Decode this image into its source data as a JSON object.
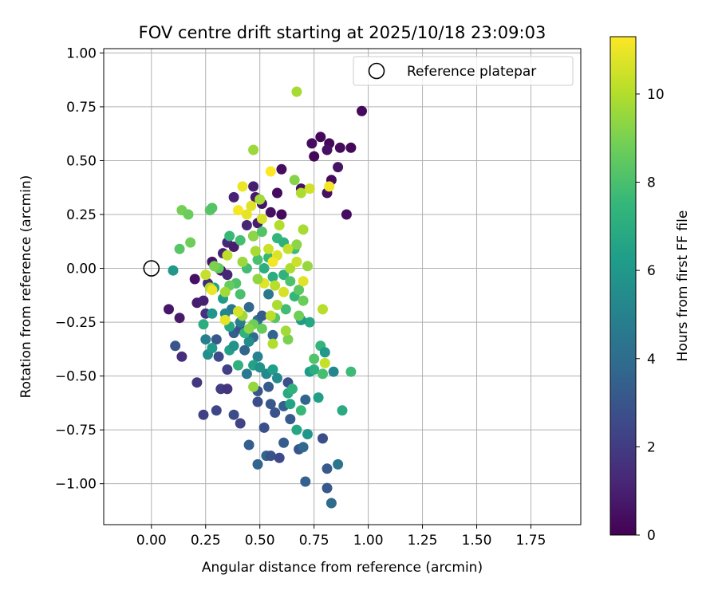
{
  "chart_data": {
    "type": "scatter",
    "title": "FOV centre drift starting at 2025/10/18 23:09:03",
    "xlabel": "Angular distance from reference (arcmin)",
    "ylabel": "Rotation from reference (arcmin)",
    "xlim": [
      -0.22,
      1.98
    ],
    "ylim": [
      -1.19,
      1.02
    ],
    "x_ticks": [
      0.0,
      0.25,
      0.5,
      0.75,
      1.0,
      1.25,
      1.5,
      1.75
    ],
    "x_tick_labels": [
      "0.00",
      "0.25",
      "0.50",
      "0.75",
      "1.00",
      "1.25",
      "1.50",
      "1.75"
    ],
    "y_ticks": [
      1.0,
      0.75,
      0.5,
      0.25,
      0.0,
      -0.25,
      -0.5,
      -0.75,
      -1.0
    ],
    "y_tick_labels": [
      "1.00",
      "0.75",
      "0.50",
      "0.25",
      "0.00",
      "−0.25",
      "−0.50",
      "−0.75",
      "−1.00"
    ],
    "grid": true,
    "legend": {
      "placement": "top-right",
      "entries": [
        "Reference platepar"
      ]
    },
    "reference_point": {
      "x": 0.0,
      "y": 0.0,
      "label": "Reference platepar"
    },
    "colorbar": {
      "label": "Hours from first FF file",
      "range": [
        0,
        11.3
      ],
      "ticks": [
        0,
        2,
        4,
        6,
        8,
        10
      ],
      "tick_labels": [
        "0",
        "2",
        "4",
        "6",
        "8",
        "10"
      ],
      "colormap": "viridis",
      "colormap_stops": [
        "#440154",
        "#482878",
        "#3e4989",
        "#31688e",
        "#26828e",
        "#1f9e89",
        "#35b779",
        "#6ece58",
        "#b5de2b",
        "#fde725"
      ]
    },
    "points": [
      [
        0.97,
        0.73,
        0.3
      ],
      [
        0.78,
        0.61,
        0.2
      ],
      [
        0.74,
        0.58,
        0.4
      ],
      [
        0.82,
        0.58,
        0.2
      ],
      [
        0.87,
        0.56,
        0.3
      ],
      [
        0.92,
        0.56,
        0.2
      ],
      [
        0.81,
        0.55,
        0.5
      ],
      [
        0.75,
        0.52,
        0.2
      ],
      [
        0.86,
        0.47,
        0.6
      ],
      [
        0.83,
        0.41,
        0.3
      ],
      [
        0.6,
        0.46,
        0.4
      ],
      [
        0.69,
        0.37,
        0.5
      ],
      [
        0.81,
        0.35,
        0.5
      ],
      [
        0.58,
        0.35,
        0.3
      ],
      [
        0.47,
        0.38,
        1.0
      ],
      [
        0.48,
        0.33,
        0.8
      ],
      [
        0.38,
        0.33,
        1.1
      ],
      [
        0.51,
        0.3,
        0.6
      ],
      [
        0.9,
        0.25,
        0.4
      ],
      [
        0.55,
        0.26,
        0.5
      ],
      [
        0.6,
        0.25,
        0.3
      ],
      [
        0.49,
        0.21,
        0.9
      ],
      [
        0.44,
        0.2,
        1.2
      ],
      [
        0.47,
        0.15,
        0.8
      ],
      [
        0.35,
        0.12,
        1.3
      ],
      [
        0.38,
        0.1,
        0.9
      ],
      [
        0.33,
        0.07,
        1.1
      ],
      [
        0.28,
        0.03,
        0.7
      ],
      [
        0.32,
        -0.01,
        0.6
      ],
      [
        0.35,
        -0.03,
        1.2
      ],
      [
        0.2,
        -0.05,
        0.5
      ],
      [
        0.26,
        -0.07,
        1.4
      ],
      [
        0.21,
        -0.16,
        0.9
      ],
      [
        0.24,
        -0.15,
        1.0
      ],
      [
        0.08,
        -0.19,
        0.7
      ],
      [
        0.25,
        -0.21,
        1.6
      ],
      [
        0.13,
        -0.23,
        0.8
      ],
      [
        0.14,
        -0.41,
        1.5
      ],
      [
        0.11,
        -0.36,
        3.0
      ],
      [
        0.21,
        -0.53,
        1.8
      ],
      [
        0.24,
        -0.68,
        2.2
      ],
      [
        0.3,
        -0.66,
        2.4
      ],
      [
        0.32,
        -0.56,
        2.0
      ],
      [
        0.35,
        -0.56,
        1.7
      ],
      [
        0.38,
        -0.68,
        2.6
      ],
      [
        0.41,
        -0.72,
        2.3
      ],
      [
        0.45,
        -0.82,
        3.4
      ],
      [
        0.49,
        -0.91,
        3.7
      ],
      [
        0.53,
        -0.87,
        3.6
      ],
      [
        0.55,
        -0.87,
        2.9
      ],
      [
        0.59,
        -0.88,
        2.5
      ],
      [
        0.61,
        -0.81,
        3.3
      ],
      [
        0.68,
        -0.84,
        3.0
      ],
      [
        0.7,
        -0.83,
        3.8
      ],
      [
        0.71,
        -0.99,
        3.5
      ],
      [
        0.79,
        -0.79,
        2.7
      ],
      [
        0.81,
        -0.93,
        3.2
      ],
      [
        0.81,
        -1.02,
        3.1
      ],
      [
        0.83,
        -1.09,
        3.9
      ],
      [
        0.86,
        -0.91,
        4.4
      ],
      [
        0.52,
        -0.74,
        2.8
      ],
      [
        0.55,
        -0.63,
        3.1
      ],
      [
        0.57,
        -0.67,
        2.9
      ],
      [
        0.61,
        -0.64,
        3.4
      ],
      [
        0.64,
        -0.7,
        3.2
      ],
      [
        0.71,
        -0.61,
        3.6
      ],
      [
        0.63,
        -0.53,
        2.8
      ],
      [
        0.49,
        -0.57,
        3.0
      ],
      [
        0.54,
        -0.55,
        3.3
      ],
      [
        0.49,
        -0.62,
        2.7
      ],
      [
        0.31,
        -0.41,
        2.6
      ],
      [
        0.35,
        -0.47,
        2.2
      ],
      [
        0.3,
        -0.33,
        3.1
      ],
      [
        0.38,
        -0.3,
        3.4
      ],
      [
        0.41,
        -0.28,
        2.9
      ],
      [
        0.43,
        -0.38,
        3.6
      ],
      [
        0.47,
        -0.32,
        4.0
      ],
      [
        0.49,
        -0.24,
        4.2
      ],
      [
        0.45,
        -0.18,
        3.8
      ],
      [
        0.54,
        -0.12,
        4.5
      ],
      [
        0.51,
        -0.22,
        3.3
      ],
      [
        0.56,
        -0.31,
        3.7
      ],
      [
        0.44,
        -0.49,
        4.6
      ],
      [
        0.49,
        -0.41,
        5.0
      ],
      [
        0.53,
        -0.49,
        5.3
      ],
      [
        0.45,
        -0.34,
        5.5
      ],
      [
        0.41,
        -0.25,
        4.8
      ],
      [
        0.37,
        -0.19,
        4.4
      ],
      [
        0.28,
        -0.21,
        5.9
      ],
      [
        0.25,
        -0.33,
        4.9
      ],
      [
        0.34,
        -0.21,
        5.2
      ],
      [
        0.33,
        -0.14,
        6.2
      ],
      [
        0.29,
        -0.09,
        6.6
      ],
      [
        0.26,
        -0.4,
        5.6
      ],
      [
        0.28,
        -0.37,
        6.1
      ],
      [
        0.36,
        -0.38,
        6.4
      ],
      [
        0.38,
        -0.36,
        5.8
      ],
      [
        0.36,
        -0.27,
        6.8
      ],
      [
        0.24,
        -0.26,
        7.0
      ],
      [
        0.1,
        -0.01,
        6.0
      ],
      [
        0.4,
        -0.45,
        7.2
      ],
      [
        0.47,
        -0.45,
        6.5
      ],
      [
        0.5,
        -0.46,
        5.7
      ],
      [
        0.56,
        -0.47,
        6.3
      ],
      [
        0.58,
        -0.51,
        5.4
      ],
      [
        0.63,
        -0.58,
        6.9
      ],
      [
        0.65,
        -0.56,
        7.3
      ],
      [
        0.64,
        -0.63,
        6.6
      ],
      [
        0.69,
        -0.66,
        7.6
      ],
      [
        0.67,
        -0.75,
        6.7
      ],
      [
        0.72,
        -0.77,
        5.9
      ],
      [
        0.73,
        -0.48,
        6.2
      ],
      [
        0.75,
        -0.47,
        7.1
      ],
      [
        0.77,
        -0.6,
        6.4
      ],
      [
        0.78,
        -0.36,
        7.4
      ],
      [
        0.8,
        -0.39,
        6.0
      ],
      [
        0.84,
        -0.48,
        5.2
      ],
      [
        0.88,
        -0.66,
        6.9
      ],
      [
        0.92,
        -0.48,
        7.7
      ],
      [
        0.79,
        -0.49,
        7.9
      ],
      [
        0.75,
        -0.42,
        8.2
      ],
      [
        0.73,
        -0.25,
        6.8
      ],
      [
        0.69,
        -0.24,
        6.1
      ],
      [
        0.66,
        -0.13,
        7.5
      ],
      [
        0.62,
        -0.19,
        7.8
      ],
      [
        0.57,
        -0.23,
        8.3
      ],
      [
        0.51,
        -0.28,
        8.6
      ],
      [
        0.47,
        -0.26,
        8.8
      ],
      [
        0.43,
        -0.3,
        7.3
      ],
      [
        0.41,
        -0.12,
        8.0
      ],
      [
        0.39,
        -0.07,
        8.1
      ],
      [
        0.36,
        -0.08,
        8.6
      ],
      [
        0.31,
        0.0,
        8.5
      ],
      [
        0.29,
        0.01,
        9.0
      ],
      [
        0.27,
        0.27,
        8.4
      ],
      [
        0.28,
        0.28,
        8.2
      ],
      [
        0.14,
        0.27,
        8.9
      ],
      [
        0.17,
        0.25,
        8.7
      ],
      [
        0.13,
        0.09,
        8.3
      ],
      [
        0.18,
        0.12,
        8.8
      ],
      [
        0.36,
        0.15,
        7.6
      ],
      [
        0.41,
        0.13,
        7.9
      ],
      [
        0.47,
        0.15,
        9.3
      ],
      [
        0.51,
        0.17,
        8.2
      ],
      [
        0.58,
        0.14,
        7.4
      ],
      [
        0.61,
        0.12,
        7.2
      ],
      [
        0.66,
        0.09,
        7.7
      ],
      [
        0.54,
        0.05,
        7.5
      ],
      [
        0.49,
        0.04,
        8.0
      ],
      [
        0.44,
        0.0,
        7.8
      ],
      [
        0.52,
        0.0,
        7.1
      ],
      [
        0.56,
        -0.04,
        7.0
      ],
      [
        0.61,
        -0.03,
        7.3
      ],
      [
        0.64,
        -0.06,
        8.1
      ],
      [
        0.68,
        -0.1,
        8.4
      ],
      [
        0.7,
        -0.15,
        8.7
      ],
      [
        0.68,
        -0.22,
        8.8
      ],
      [
        0.63,
        -0.33,
        9.0
      ],
      [
        0.47,
        -0.55,
        9.5
      ],
      [
        0.45,
        -0.28,
        9.3
      ],
      [
        0.42,
        -0.22,
        9.6
      ],
      [
        0.4,
        -0.2,
        10.5
      ],
      [
        0.34,
        -0.24,
        10.9
      ],
      [
        0.34,
        -0.11,
        9.7
      ],
      [
        0.27,
        -0.09,
        9.9
      ],
      [
        0.25,
        -0.03,
        10.3
      ],
      [
        0.28,
        -0.1,
        11.0
      ],
      [
        0.35,
        0.06,
        10.2
      ],
      [
        0.42,
        0.03,
        9.6
      ],
      [
        0.48,
        0.08,
        9.8
      ],
      [
        0.54,
        0.09,
        10.4
      ],
      [
        0.58,
        0.06,
        10.7
      ],
      [
        0.56,
        0.03,
        11.1
      ],
      [
        0.52,
        -0.07,
        10.8
      ],
      [
        0.49,
        -0.05,
        9.4
      ],
      [
        0.57,
        -0.08,
        10.1
      ],
      [
        0.61,
        -0.11,
        10.6
      ],
      [
        0.64,
        0.0,
        9.9
      ],
      [
        0.67,
        0.03,
        10.4
      ],
      [
        0.7,
        -0.06,
        10.8
      ],
      [
        0.72,
        0.01,
        9.5
      ],
      [
        0.67,
        0.11,
        9.3
      ],
      [
        0.7,
        0.18,
        9.8
      ],
      [
        0.63,
        0.09,
        10.3
      ],
      [
        0.59,
        0.2,
        10.0
      ],
      [
        0.51,
        0.23,
        10.6
      ],
      [
        0.44,
        0.25,
        10.9
      ],
      [
        0.4,
        0.27,
        11.2
      ],
      [
        0.46,
        0.29,
        10.8
      ],
      [
        0.5,
        0.32,
        9.7
      ],
      [
        0.42,
        0.38,
        11.0
      ],
      [
        0.55,
        0.45,
        11.3
      ],
      [
        0.47,
        0.55,
        9.6
      ],
      [
        0.66,
        0.41,
        9.2
      ],
      [
        0.69,
        0.35,
        9.9
      ],
      [
        0.73,
        0.37,
        10.5
      ],
      [
        0.82,
        0.38,
        11.1
      ],
      [
        0.67,
        0.82,
        9.8
      ],
      [
        0.79,
        -0.19,
        10.1
      ],
      [
        0.8,
        -0.44,
        10.3
      ],
      [
        0.56,
        -0.35,
        10.0
      ],
      [
        0.62,
        -0.29,
        9.7
      ],
      [
        0.55,
        -0.22,
        10.2
      ],
      [
        0.58,
        -0.17,
        9.9
      ],
      [
        0.4,
        -0.2,
        10.6
      ]
    ]
  }
}
